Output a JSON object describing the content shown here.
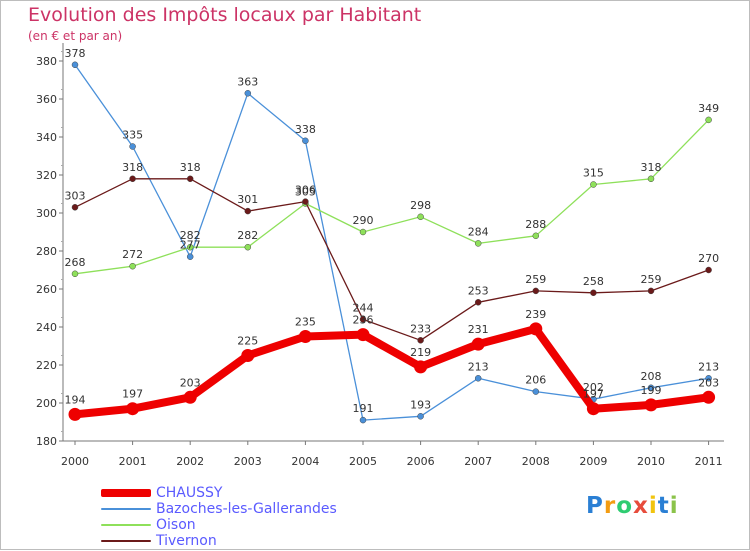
{
  "chart_data": {
    "type": "line",
    "title": "Evolution des Impôts locaux par Habitant",
    "subtitle": "(en € et par an)",
    "xlabel": "",
    "ylabel": "",
    "categories": [
      "2000",
      "2001",
      "2002",
      "2003",
      "2004",
      "2005",
      "2006",
      "2007",
      "2008",
      "2009",
      "2010",
      "2011"
    ],
    "ylim": [
      180,
      380
    ],
    "yticks": [
      180,
      200,
      220,
      240,
      260,
      280,
      300,
      320,
      340,
      360,
      380
    ],
    "grid": false,
    "legend_position": "bottom-left",
    "series": [
      {
        "name": "Bazoches-les-Gallerandes",
        "color": "#4a90d9",
        "values": [
          378,
          335,
          277,
          363,
          338,
          191,
          193,
          213,
          206,
          202,
          208,
          213
        ]
      },
      {
        "name": "Oison",
        "color": "#8ee05a",
        "values": [
          268,
          272,
          282,
          282,
          305,
          290,
          298,
          284,
          288,
          315,
          318,
          349
        ]
      },
      {
        "name": "Tivernon",
        "color": "#6b1a1a",
        "values": [
          303,
          318,
          318,
          301,
          306,
          244,
          233,
          253,
          259,
          258,
          259,
          270
        ]
      },
      {
        "name": "CHAUSSY",
        "color": "#ee0000",
        "values": [
          194,
          197,
          203,
          225,
          235,
          236,
          219,
          231,
          239,
          197,
          199,
          203
        ]
      }
    ]
  },
  "legend": {
    "items": [
      {
        "label": "CHAUSSY",
        "color": "#ee0000"
      },
      {
        "label": "Bazoches-les-Gallerandes",
        "color": "#4a90d9"
      },
      {
        "label": "Oison",
        "color": "#8ee05a"
      },
      {
        "label": "Tivernon",
        "color": "#6b1a1a"
      }
    ]
  },
  "logo": {
    "letters": [
      "P",
      "r",
      "o",
      "x",
      "i",
      "t",
      "i"
    ],
    "colors": [
      "#2a7fd4",
      "#f39c12",
      "#2ecc71",
      "#e74c3c",
      "#f1c40f",
      "#2a7fd4",
      "#8bc34a"
    ]
  }
}
